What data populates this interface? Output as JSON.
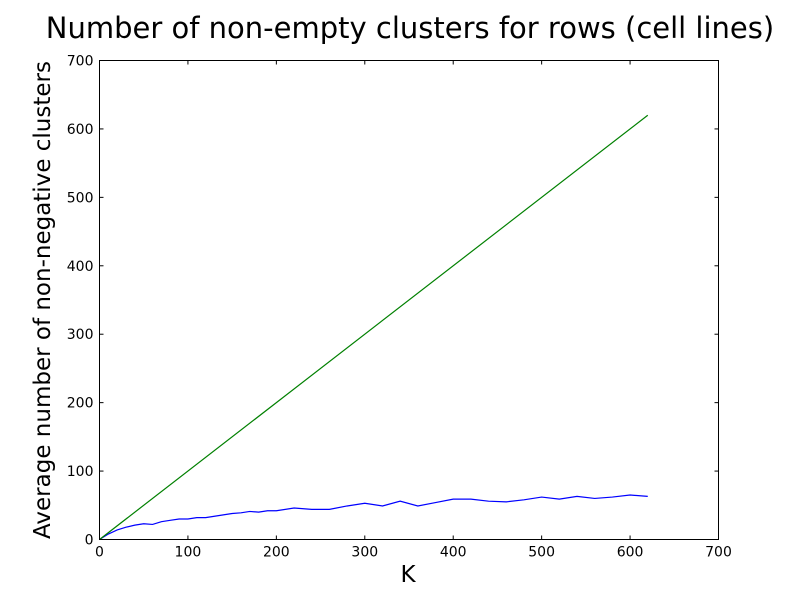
{
  "chart_data": {
    "type": "line",
    "title": "Number of non-empty clusters for rows (cell lines)",
    "xlabel": "K",
    "ylabel": "Average number of non-negative clusters",
    "xlim": [
      0,
      700
    ],
    "ylim": [
      0,
      700
    ],
    "xticks": [
      0,
      100,
      200,
      300,
      400,
      500,
      600,
      700
    ],
    "yticks": [
      0,
      100,
      200,
      300,
      400,
      500,
      600,
      700
    ],
    "grid": false,
    "series": [
      {
        "color": "#0000ff",
        "x": [
          0,
          10,
          20,
          30,
          40,
          50,
          60,
          70,
          80,
          90,
          100,
          110,
          120,
          130,
          140,
          150,
          160,
          170,
          180,
          190,
          200,
          220,
          240,
          260,
          280,
          300,
          320,
          340,
          360,
          380,
          400,
          420,
          440,
          460,
          480,
          500,
          520,
          540,
          560,
          580,
          600,
          620
        ],
        "y": [
          0,
          8,
          14,
          18,
          21,
          23,
          22,
          26,
          28,
          30,
          30,
          32,
          32,
          34,
          36,
          38,
          39,
          41,
          40,
          42,
          42,
          46,
          44,
          44,
          49,
          53,
          49,
          56,
          49,
          54,
          59,
          59,
          56,
          55,
          58,
          62,
          59,
          63,
          60,
          62,
          65,
          63
        ]
      },
      {
        "color": "#008000",
        "x": [
          0,
          620
        ],
        "y": [
          0,
          620
        ]
      }
    ]
  }
}
